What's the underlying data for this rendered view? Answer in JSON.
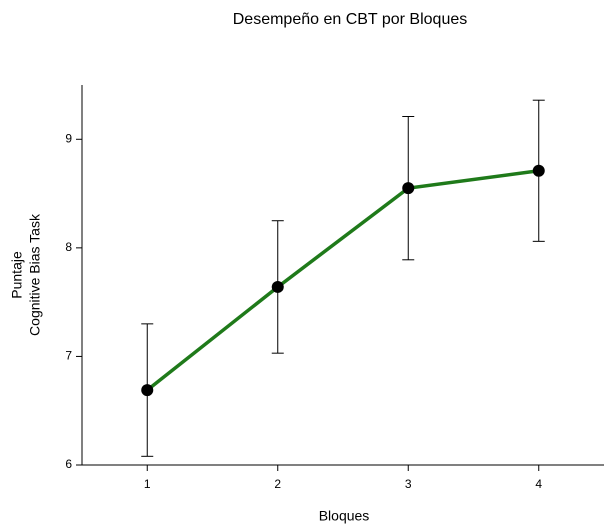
{
  "chart_data": {
    "type": "line",
    "title": "Desempeño en CBT por Bloques",
    "xlabel": "Bloques",
    "ylabel": [
      "Puntaje",
      "Cognitive Bias Task"
    ],
    "x": [
      1,
      2,
      3,
      4
    ],
    "series": [
      {
        "color": "#1f7a1a",
        "values": [
          6.69,
          7.64,
          8.55,
          8.71
        ],
        "errors": [
          0.61,
          0.61,
          0.66,
          0.65
        ]
      }
    ],
    "xlim": [
      0.5,
      4.5
    ],
    "xticks": [
      1,
      2,
      3,
      4
    ],
    "ylim": [
      6,
      9.5
    ],
    "yticks": [
      6,
      7,
      8,
      9
    ]
  }
}
